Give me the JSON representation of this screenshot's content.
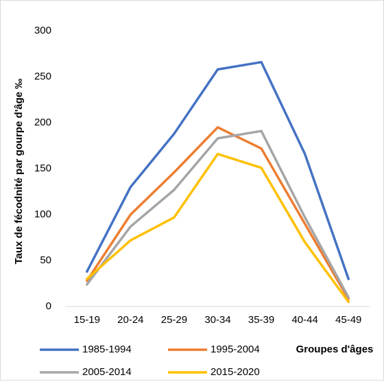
{
  "chart_data": {
    "type": "line",
    "y_label": "Taux de fécodnité par gourpe d'âge ‰",
    "x_label": "Groupes d'âges",
    "categories": [
      "15-19",
      "20-24",
      "25-29",
      "30-34",
      "35-39",
      "40-44",
      "45-49"
    ],
    "series": [
      {
        "name": "1985-1994",
        "color": "#4472c4",
        "values": [
          38,
          130,
          188,
          258,
          266,
          166,
          30
        ]
      },
      {
        "name": "1995-2004",
        "color": "#ed7d31",
        "values": [
          28,
          100,
          146,
          195,
          172,
          90,
          8
        ]
      },
      {
        "name": "2005-2014",
        "color": "#a5a5a5",
        "values": [
          24,
          87,
          127,
          183,
          191,
          97,
          10
        ]
      },
      {
        "name": "2015-2020",
        "color": "#ffc000",
        "values": [
          30,
          72,
          97,
          166,
          151,
          70,
          5
        ]
      }
    ],
    "ylim": [
      0,
      300
    ],
    "yticks": [
      0,
      50,
      100,
      150,
      200,
      250,
      300
    ],
    "grid": false
  }
}
